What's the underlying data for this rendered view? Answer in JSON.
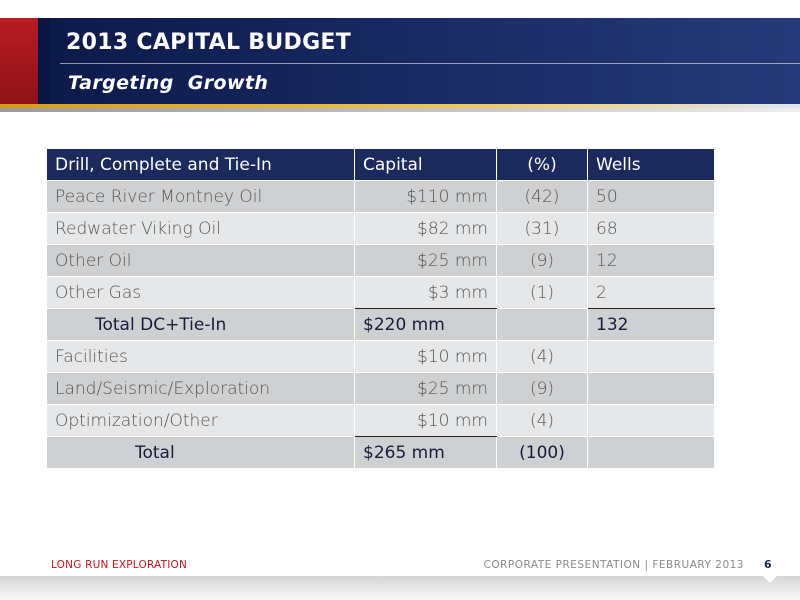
{
  "slide": {
    "title": "2013 CAPITAL BUDGET",
    "subtitle": "Targeting  Growth"
  },
  "table": {
    "headers": [
      "Drill, Complete and Tie-In",
      "Capital",
      "(%)",
      "Wells"
    ],
    "rows": [
      {
        "label": "Peace River Montney Oil",
        "capital": "$110 mm",
        "pct": "(42)",
        "wells": "50"
      },
      {
        "label": "Redwater Viking Oil",
        "capital": "$82 mm",
        "pct": "(31)",
        "wells": "68"
      },
      {
        "label": "Other Oil",
        "capital": "$25 mm",
        "pct": "(9)",
        "wells": "12"
      },
      {
        "label": "Other Gas",
        "capital": "$3 mm",
        "pct": "(1)",
        "wells": "2"
      },
      {
        "label": "Total DC+Tie-In",
        "capital": "$220 mm",
        "pct": "",
        "wells": "132"
      },
      {
        "label": "Facilities",
        "capital": "$10 mm",
        "pct": "(4)",
        "wells": ""
      },
      {
        "label": "Land/Seismic/Exploration",
        "capital": "$25 mm",
        "pct": "(9)",
        "wells": ""
      },
      {
        "label": "Optimization/Other",
        "capital": "$10 mm",
        "pct": "(4)",
        "wells": ""
      },
      {
        "label": "Total",
        "capital": "$265 mm",
        "pct": "(100)",
        "wells": ""
      }
    ]
  },
  "footer": {
    "company": "LONG RUN EXPLORATION",
    "presentation": "CORPORATE PRESENTATION | FEBRUARY 2013",
    "page": "6"
  },
  "colors": {
    "navy": "#1b2a5c",
    "red": "#b81c22",
    "gold": "#e8b93a"
  }
}
